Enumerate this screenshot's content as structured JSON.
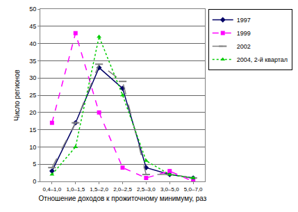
{
  "chart_data": {
    "type": "line",
    "x_label": "Отношение доходов к прожиточному минимуму, раз",
    "y_label": "Число регионов",
    "categories": [
      "0,4–1,0",
      "1,0–1,5",
      "1,5–2,0",
      "2,0–2,5",
      "2,5–3,0",
      "3,0–5,0",
      "5,0–7,0"
    ],
    "series": [
      {
        "name": "1997",
        "color": "#000066",
        "marker": "diamond",
        "line_style": "solid",
        "values": [
          3,
          17,
          33,
          27,
          4,
          2,
          1
        ]
      },
      {
        "name": "1999",
        "color": "#ff00ff",
        "marker": "square",
        "line_style": "dash",
        "values": [
          17,
          43,
          20,
          4,
          1,
          3,
          0
        ]
      },
      {
        "name": "2002",
        "color": "#808080",
        "marker": "dash",
        "line_style": "longdash",
        "values": [
          4,
          17,
          34,
          29,
          2,
          2,
          1
        ]
      },
      {
        "name": "2004, 2-й квартал",
        "color": "#00cc00",
        "marker": "triangle",
        "line_style": "dot",
        "values": [
          2,
          10,
          42,
          25,
          6,
          2,
          1
        ]
      }
    ],
    "ylim": [
      0,
      50
    ],
    "yticks": [
      0,
      5,
      10,
      15,
      20,
      25,
      30,
      35,
      40,
      45,
      50
    ],
    "grid": true,
    "legend": "right"
  }
}
